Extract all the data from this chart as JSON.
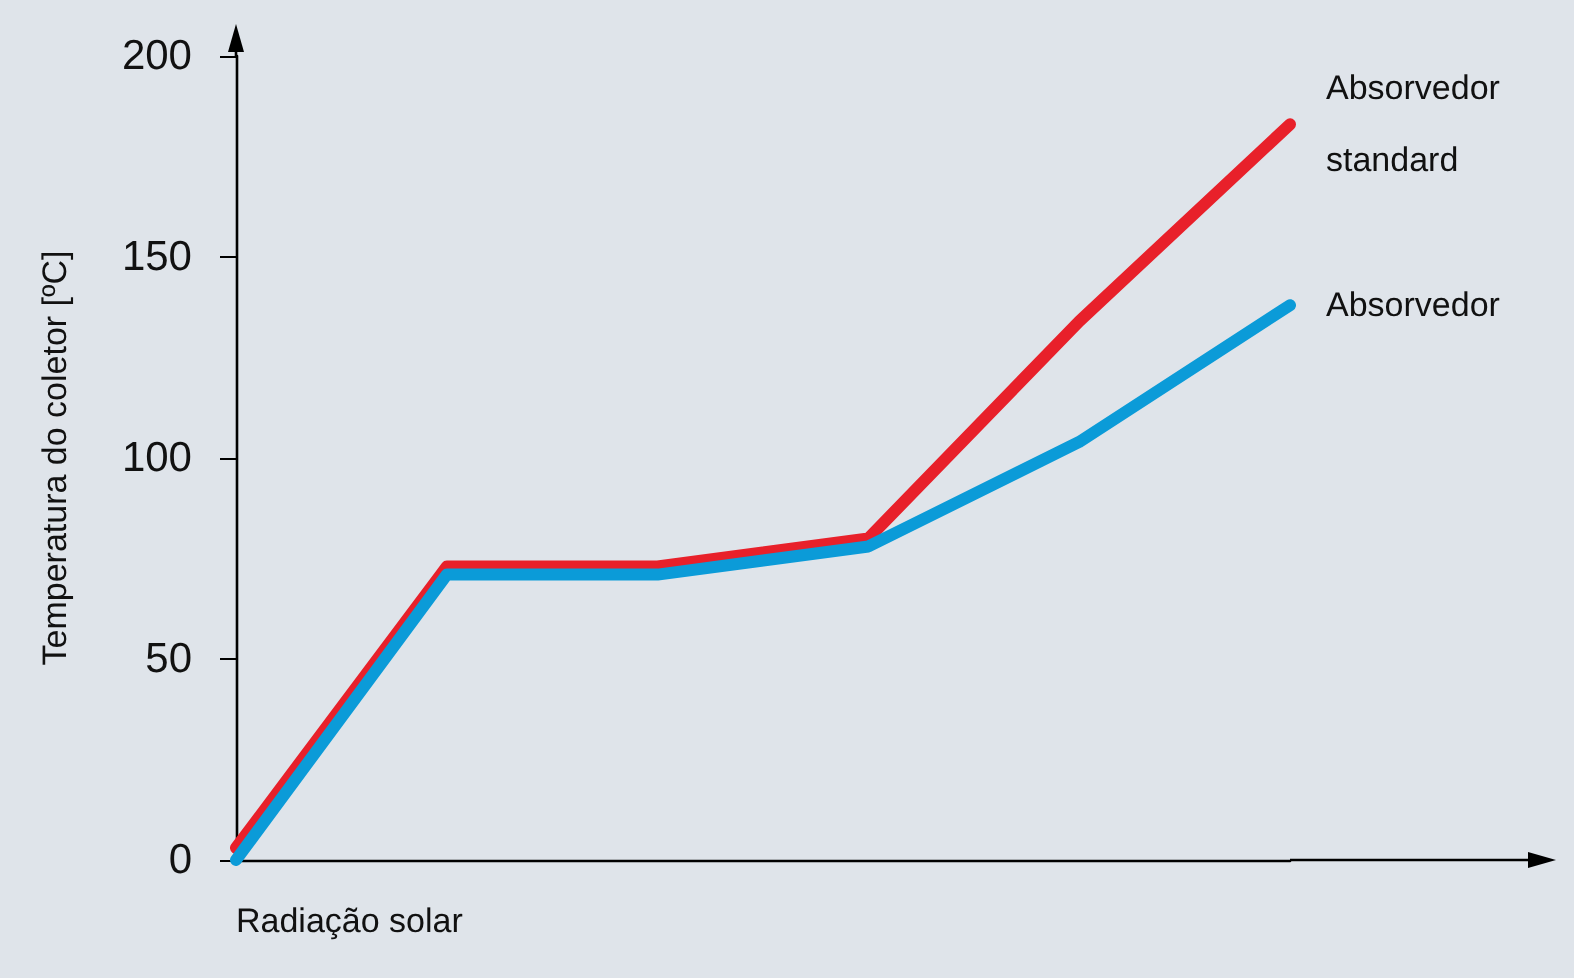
{
  "chart_data": {
    "type": "line",
    "xlabel": "Radiação solar",
    "ylabel": "Temperatura do coletor [ºC]",
    "categories": [
      null,
      null,
      null,
      null,
      null,
      null
    ],
    "series": [
      {
        "name": "Absorvedor standard",
        "color": "#e8202a",
        "values": [
          3,
          73,
          73,
          80,
          134,
          183
        ]
      },
      {
        "name": "Absorvedor",
        "color": "#0b9bd8",
        "values": [
          0,
          71,
          71,
          78,
          104,
          138
        ]
      }
    ],
    "ylim": [
      0,
      200
    ],
    "yticks": [
      0,
      50,
      100,
      150,
      200
    ],
    "tick_labels": "y",
    "grid": false,
    "legend": false,
    "marker": "none",
    "line_style": "solid"
  }
}
